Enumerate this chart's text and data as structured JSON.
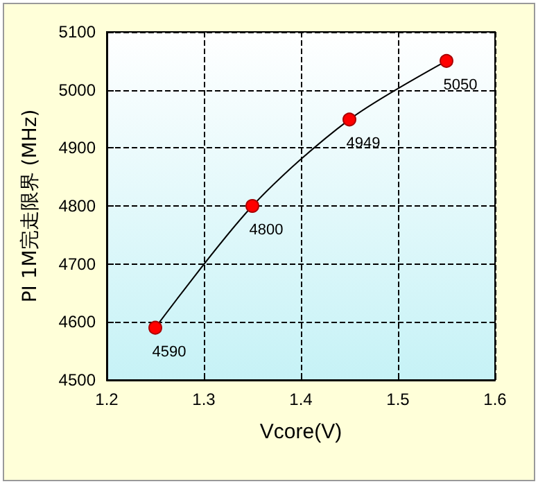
{
  "chart_data": {
    "type": "line",
    "xlabel": "Vcore(V)",
    "ylabel": "PI 1M完走限界 (MHz)",
    "x": [
      1.25,
      1.35,
      1.45,
      1.55
    ],
    "series": [
      {
        "color": "#ff0000",
        "values": [
          4590,
          4800,
          4949,
          5050
        ]
      }
    ],
    "xlim": [
      1.2,
      1.6
    ],
    "xticks": [
      1.2,
      1.3,
      1.4,
      1.5,
      1.6
    ],
    "ylim": [
      4500,
      5100
    ],
    "yticks": [
      4500,
      4600,
      4700,
      4800,
      4900,
      5000,
      5100
    ],
    "grid": true,
    "marker": "circle",
    "line_style": "solid",
    "data_labels": true
  }
}
